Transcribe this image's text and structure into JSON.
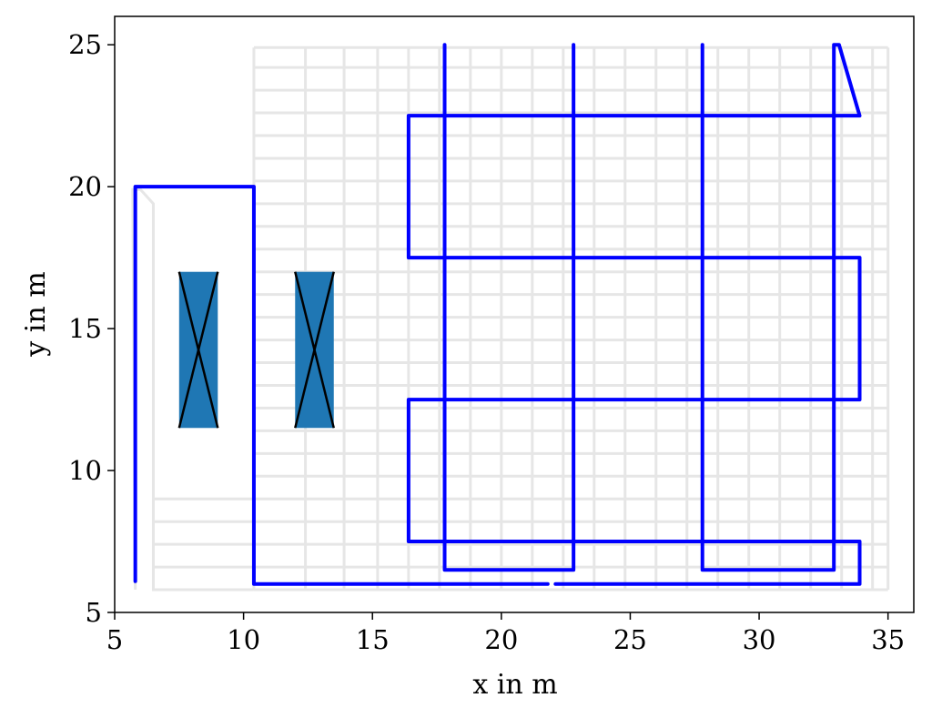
{
  "chart_data": {
    "type": "line",
    "title": "",
    "xlabel": "x in m",
    "ylabel": "y in m",
    "xlim": [
      5,
      36
    ],
    "ylim": [
      5,
      26
    ],
    "xticks": [
      5,
      10,
      15,
      20,
      25,
      30,
      35
    ],
    "yticks": [
      5,
      10,
      15,
      20,
      25
    ],
    "xtick_labels": [
      "5",
      "10",
      "15",
      "20",
      "25",
      "30",
      "35"
    ],
    "ytick_labels": [
      "5",
      "10",
      "15",
      "20",
      "25"
    ],
    "grid": false,
    "legend": "none",
    "colors": {
      "path": "#0000ff",
      "background_map": "#e6e6e6",
      "obstacle_fill": "#1f77b4",
      "obstacle_cross": "#000000"
    },
    "background_map": {
      "region": {
        "x": [
          10.4,
          35
        ],
        "y": [
          5.8,
          24.9
        ]
      },
      "vertical_lines_x": [
        10.4,
        12.4,
        13.9,
        15.2,
        16.4,
        17.6,
        18.8,
        20.0,
        21.2,
        22.4,
        23.6,
        24.8,
        26.0,
        27.2,
        28.4,
        29.6,
        30.8,
        32.0,
        33.2,
        34.4,
        35.0
      ],
      "horizontal_lines_y": [
        5.8,
        6.6,
        7.4,
        8.2,
        9.0,
        9.8,
        10.6,
        11.4,
        12.2,
        13.0,
        13.8,
        14.6,
        15.4,
        16.2,
        17.0,
        17.8,
        18.6,
        19.4,
        20.2,
        21.0,
        21.8,
        22.6,
        23.4,
        24.2,
        24.9
      ],
      "left_corridor": [
        [
          5.8,
          5.8
        ],
        [
          5.7,
          19.9
        ],
        [
          6.0,
          19.9
        ],
        [
          6.5,
          19.4
        ],
        [
          6.5,
          5.8
        ],
        [
          10.4,
          5.8
        ]
      ],
      "left_rows_y": [
        6.6,
        7.4,
        8.2,
        9.0
      ]
    },
    "obstacles": [
      {
        "x": [
          7.5,
          9.0
        ],
        "y": [
          11.5,
          17.0
        ]
      },
      {
        "x": [
          12.0,
          13.5
        ],
        "y": [
          11.5,
          17.0
        ]
      }
    ],
    "series": [
      {
        "values": [
          [
            5.8,
            6.1
          ],
          [
            5.8,
            20.0
          ],
          [
            10.4,
            20.0
          ],
          [
            10.4,
            6.0
          ],
          [
            21.8,
            6.0
          ]
        ]
      },
      {
        "values": [
          [
            22.1,
            6.0
          ],
          [
            33.9,
            6.0
          ],
          [
            33.9,
            7.5
          ],
          [
            16.4,
            7.5
          ],
          [
            16.4,
            12.5
          ],
          [
            33.9,
            12.5
          ],
          [
            33.9,
            17.5
          ],
          [
            16.4,
            17.5
          ],
          [
            16.4,
            22.5
          ],
          [
            33.9,
            22.5
          ],
          [
            33.1,
            25.0
          ],
          [
            32.9,
            25.0
          ],
          [
            32.9,
            6.5
          ],
          [
            27.8,
            6.5
          ],
          [
            27.8,
            25.0
          ]
        ]
      },
      {
        "values": [
          [
            17.8,
            25.0
          ],
          [
            17.8,
            6.5
          ],
          [
            22.8,
            6.5
          ],
          [
            22.8,
            25.0
          ]
        ]
      }
    ]
  }
}
